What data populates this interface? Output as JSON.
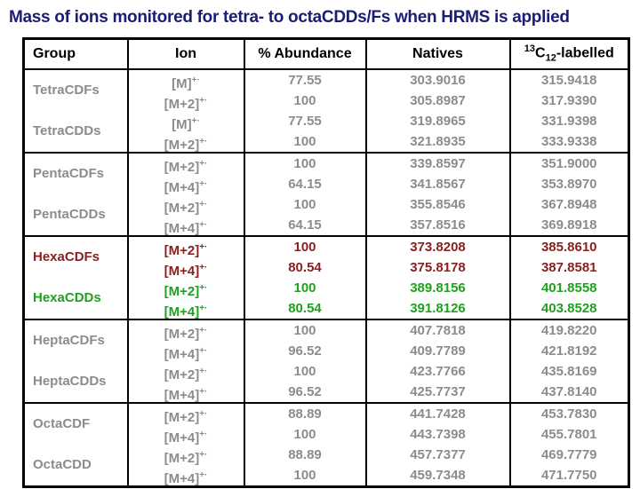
{
  "title": "Mass of ions monitored for tetra- to octaCDDs/Fs when HRMS is applied",
  "colors": {
    "title": "#1c1c75",
    "gray": "#8c8c8c",
    "dark_red": "#8b2020",
    "green": "#1fa11f",
    "border": "#000000",
    "background": "#ffffff"
  },
  "table": {
    "headers": {
      "group": "Group",
      "ion": "Ion",
      "abundance": "% Abundance",
      "natives": "Natives",
      "labelled": {
        "sup": "13",
        "base": "C",
        "sub": "12",
        "rest": "-labelled"
      }
    },
    "groups": [
      {
        "labels": [
          {
            "text": "TetraCDFs",
            "color": "gray"
          },
          {
            "text": "TetraCDDs",
            "color": "gray"
          }
        ],
        "rows": [
          {
            "ion": "[M]",
            "ion_sup": "+·",
            "abundance": "77.55",
            "native": "303.9016",
            "labelled": "315.9418",
            "color": "gray"
          },
          {
            "ion": "[M+2]",
            "ion_sup": "+·",
            "abundance": "100",
            "native": "305.8987",
            "labelled": "317.9390",
            "color": "gray"
          },
          {
            "ion": "[M]",
            "ion_sup": "+·",
            "abundance": "77.55",
            "native": "319.8965",
            "labelled": "331.9398",
            "color": "gray"
          },
          {
            "ion": "[M+2]",
            "ion_sup": "+·",
            "abundance": "100",
            "native": "321.8935",
            "labelled": "333.9338",
            "color": "gray"
          }
        ]
      },
      {
        "labels": [
          {
            "text": "PentaCDFs",
            "color": "gray"
          },
          {
            "text": "PentaCDDs",
            "color": "gray"
          }
        ],
        "rows": [
          {
            "ion": "[M+2]",
            "ion_sup": "+·",
            "abundance": "100",
            "native": "339.8597",
            "labelled": "351.9000",
            "color": "gray"
          },
          {
            "ion": "[M+4]",
            "ion_sup": "+·",
            "abundance": "64.15",
            "native": "341.8567",
            "labelled": "353.8970",
            "color": "gray"
          },
          {
            "ion": "[M+2]",
            "ion_sup": "+·",
            "abundance": "100",
            "native": "355.8546",
            "labelled": "367.8948",
            "color": "gray"
          },
          {
            "ion": "[M+4]",
            "ion_sup": "+·",
            "abundance": "64.15",
            "native": "357.8516",
            "labelled": "369.8918",
            "color": "gray"
          }
        ]
      },
      {
        "labels": [
          {
            "text": "HexaCDFs",
            "color": "darkred"
          },
          {
            "text": "HexaCDDs",
            "color": "green"
          }
        ],
        "rows": [
          {
            "ion": "[M+2]",
            "ion_sup": "+·",
            "abundance": "100",
            "native": "373.8208",
            "labelled": "385.8610",
            "color": "darkred"
          },
          {
            "ion": "[M+4]",
            "ion_sup": "+·",
            "abundance": "80.54",
            "native": "375.8178",
            "labelled": "387.8581",
            "color": "darkred"
          },
          {
            "ion": "[M+2]",
            "ion_sup": "+·",
            "abundance": "100",
            "native": "389.8156",
            "labelled": "401.8558",
            "color": "green"
          },
          {
            "ion": "[M+4]",
            "ion_sup": "+·",
            "abundance": "80.54",
            "native": "391.8126",
            "labelled": "403.8528",
            "color": "green"
          }
        ]
      },
      {
        "labels": [
          {
            "text": "HeptaCDFs",
            "color": "gray"
          },
          {
            "text": "HeptaCDDs",
            "color": "gray"
          }
        ],
        "rows": [
          {
            "ion": "[M+2]",
            "ion_sup": "+·",
            "abundance": "100",
            "native": "407.7818",
            "labelled": "419.8220",
            "color": "gray"
          },
          {
            "ion": "[M+4]",
            "ion_sup": "+·",
            "abundance": "96.52",
            "native": "409.7789",
            "labelled": "421.8192",
            "color": "gray"
          },
          {
            "ion": "[M+2]",
            "ion_sup": "+·",
            "abundance": "100",
            "native": "423.7766",
            "labelled": "435.8169",
            "color": "gray"
          },
          {
            "ion": "[M+4]",
            "ion_sup": "+·",
            "abundance": "96.52",
            "native": "425.7737",
            "labelled": "437.8140",
            "color": "gray"
          }
        ]
      },
      {
        "labels": [
          {
            "text": "OctaCDF",
            "color": "gray"
          },
          {
            "text": "OctaCDD",
            "color": "gray"
          }
        ],
        "rows": [
          {
            "ion": "[M+2]",
            "ion_sup": "+·",
            "abundance": "88.89",
            "native": "441.7428",
            "labelled": "453.7830",
            "color": "gray"
          },
          {
            "ion": "[M+4]",
            "ion_sup": "+·",
            "abundance": "100",
            "native": "443.7398",
            "labelled": "455.7801",
            "color": "gray"
          },
          {
            "ion": "[M+2]",
            "ion_sup": "+·",
            "abundance": "88.89",
            "native": "457.7377",
            "labelled": "469.7779",
            "color": "gray"
          },
          {
            "ion": "[M+4]",
            "ion_sup": "+·",
            "abundance": "100",
            "native": "459.7348",
            "labelled": "471.7750",
            "color": "gray"
          }
        ]
      }
    ]
  }
}
